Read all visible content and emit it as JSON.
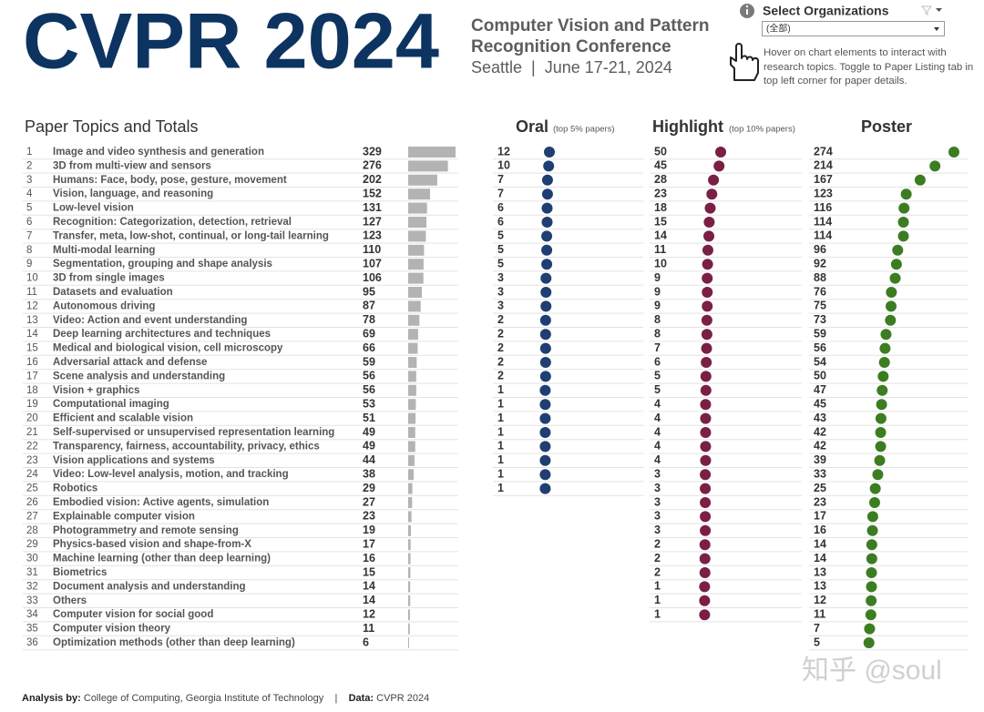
{
  "header": {
    "title": "CVPR 2024",
    "subtitle": "Computer Vision and Pattern Recognition Conference",
    "location_date": "Seattle  |  June 17-21, 2024"
  },
  "filter": {
    "label": "Select Organizations",
    "selected": "(全部)"
  },
  "note": "Hover on chart elements to interact with research topics. Toggle to Paper Listing tab in top left corner for paper details.",
  "topics": {
    "title": "Paper Topics and Totals",
    "bar_color": "#b3b3b3",
    "rows": [
      {
        "rank": 1,
        "name": "Image and video synthesis and generation",
        "total": 329
      },
      {
        "rank": 2,
        "name": "3D from multi-view and sensors",
        "total": 276
      },
      {
        "rank": 3,
        "name": "Humans: Face, body, pose, gesture, movement",
        "total": 202
      },
      {
        "rank": 4,
        "name": "Vision, language, and reasoning",
        "total": 152
      },
      {
        "rank": 5,
        "name": "Low-level vision",
        "total": 131
      },
      {
        "rank": 6,
        "name": "Recognition: Categorization, detection, retrieval",
        "total": 127
      },
      {
        "rank": 7,
        "name": "Transfer, meta, low-shot, continual, or long-tail learning",
        "total": 123
      },
      {
        "rank": 8,
        "name": "Multi-modal learning",
        "total": 110
      },
      {
        "rank": 9,
        "name": "Segmentation, grouping and shape analysis",
        "total": 107
      },
      {
        "rank": 10,
        "name": "3D from single images",
        "total": 106
      },
      {
        "rank": 11,
        "name": "Datasets and evaluation",
        "total": 95
      },
      {
        "rank": 12,
        "name": "Autonomous driving",
        "total": 87
      },
      {
        "rank": 13,
        "name": "Video: Action and event understanding",
        "total": 78
      },
      {
        "rank": 14,
        "name": "Deep learning architectures and techniques",
        "total": 69
      },
      {
        "rank": 15,
        "name": "Medical and biological vision, cell microscopy",
        "total": 66
      },
      {
        "rank": 16,
        "name": "Adversarial attack and defense",
        "total": 59
      },
      {
        "rank": 17,
        "name": "Scene analysis and understanding",
        "total": 56
      },
      {
        "rank": 18,
        "name": "Vision + graphics",
        "total": 56
      },
      {
        "rank": 19,
        "name": "Computational imaging",
        "total": 53
      },
      {
        "rank": 20,
        "name": "Efficient and scalable vision",
        "total": 51
      },
      {
        "rank": 21,
        "name": "Self-supervised or unsupervised representation learning",
        "total": 49
      },
      {
        "rank": 22,
        "name": "Transparency, fairness, accountability, privacy, ethics",
        "total": 49
      },
      {
        "rank": 23,
        "name": "Vision applications and systems",
        "total": 44
      },
      {
        "rank": 24,
        "name": "Video: Low-level analysis, motion, and tracking",
        "total": 38
      },
      {
        "rank": 25,
        "name": "Robotics",
        "total": 29
      },
      {
        "rank": 26,
        "name": "Embodied vision: Active agents, simulation",
        "total": 27
      },
      {
        "rank": 27,
        "name": "Explainable computer vision",
        "total": 23
      },
      {
        "rank": 28,
        "name": "Photogrammetry and remote sensing",
        "total": 19
      },
      {
        "rank": 29,
        "name": "Physics-based vision and shape-from-X",
        "total": 17
      },
      {
        "rank": 30,
        "name": "Machine learning (other than deep learning)",
        "total": 16
      },
      {
        "rank": 31,
        "name": "Biometrics",
        "total": 15
      },
      {
        "rank": 32,
        "name": "Document analysis and understanding",
        "total": 14
      },
      {
        "rank": 33,
        "name": "Others",
        "total": 14
      },
      {
        "rank": 34,
        "name": "Computer vision for social good",
        "total": 12
      },
      {
        "rank": 35,
        "name": "Computer vision theory",
        "total": 11
      },
      {
        "rank": 36,
        "name": "Optimization methods (other than deep learning)",
        "total": 6
      }
    ]
  },
  "oral": {
    "title": "Oral",
    "subtitle": "(top 5% papers)",
    "color": "#1f3e72",
    "values": [
      12,
      10,
      7,
      7,
      6,
      6,
      5,
      5,
      5,
      3,
      3,
      3,
      2,
      2,
      2,
      2,
      2,
      1,
      1,
      1,
      1,
      1,
      1,
      1,
      1
    ]
  },
  "highlight": {
    "title": "Highlight",
    "subtitle": "(top 10% papers)",
    "color": "#7a1f45",
    "values": [
      50,
      45,
      28,
      23,
      18,
      15,
      14,
      11,
      10,
      9,
      9,
      9,
      8,
      8,
      7,
      6,
      5,
      5,
      4,
      4,
      4,
      4,
      4,
      3,
      3,
      3,
      3,
      3,
      2,
      2,
      2,
      1,
      1,
      1
    ]
  },
  "poster": {
    "title": "Poster",
    "color": "#3c7d22",
    "values": [
      274,
      214,
      167,
      123,
      116,
      114,
      114,
      96,
      92,
      88,
      76,
      75,
      73,
      59,
      56,
      54,
      50,
      47,
      45,
      43,
      42,
      42,
      39,
      33,
      25,
      23,
      17,
      16,
      14,
      14,
      13,
      13,
      12,
      11,
      7,
      5
    ]
  },
  "footer": {
    "analysis_label": "Analysis by:",
    "analysis": "College of Computing, Georgia Institute of Technology",
    "separator": "|",
    "data_label": "Data:",
    "data": "CVPR 2024"
  },
  "watermark": "知乎 @soul"
}
